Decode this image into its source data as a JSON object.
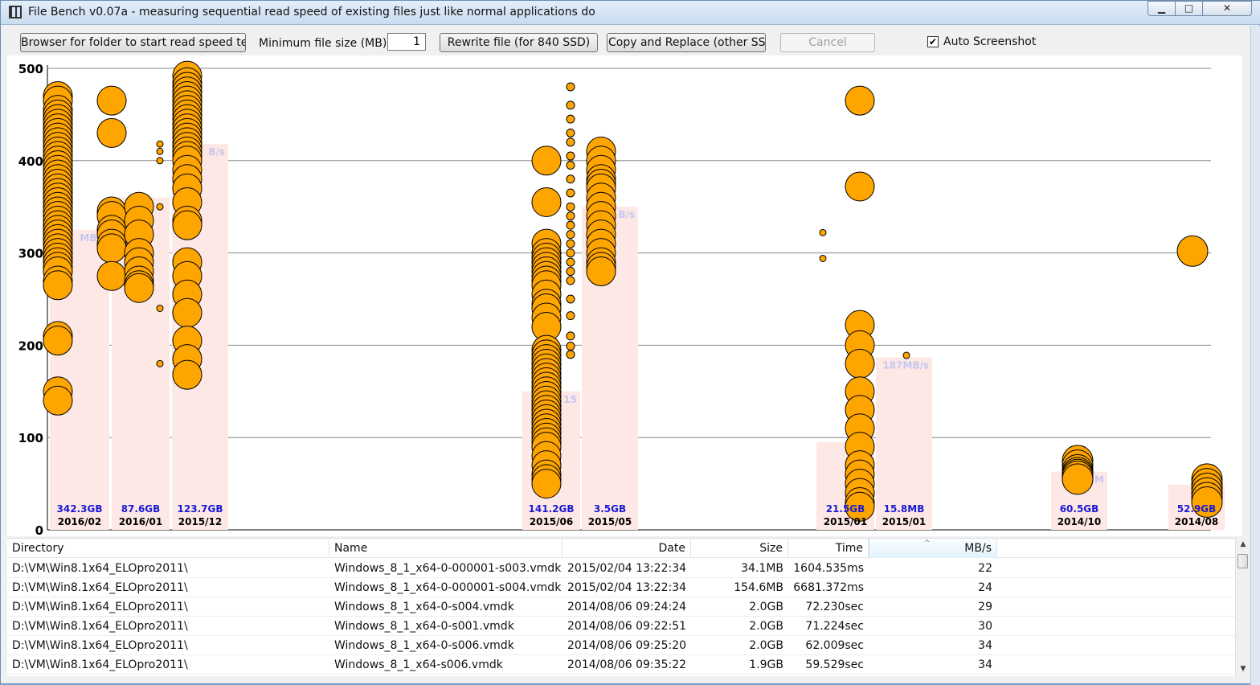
{
  "window": {
    "title": "File Bench v0.07a - measuring sequential read speed of existing files just like normal applications do",
    "minimize_glyph": "▁",
    "maximize_glyph": "□",
    "close_glyph": "✕"
  },
  "toolbar": {
    "browse_label": "Browser for folder to start read speed test.",
    "min_size_label": "Minimum file size (MB):",
    "min_size_value": "1",
    "rewrite_label": "Rewrite file (for 840 SSD)",
    "copy_replace_label": "Copy and Replace (other SSD)",
    "cancel_label": "Cancel",
    "auto_screenshot_label": "Auto Screenshot",
    "auto_screenshot_checked": true
  },
  "chart_data": {
    "type": "scatter",
    "ylim": [
      0,
      500
    ],
    "y_ticks": [
      "0",
      "100",
      "200",
      "300",
      "400",
      "500"
    ],
    "colors": {
      "bubble": "#ffa500",
      "band": "#fde8e6",
      "avg_text": "#c6c6ef",
      "size_text": "#1a1ad6",
      "grid": "#888888"
    },
    "groups": [
      {
        "date": "2016/02",
        "total": "342.3GB",
        "avg": 325,
        "avg_label": "MB/s",
        "speeds": [
          470,
          465,
          455,
          450,
          445,
          440,
          435,
          430,
          425,
          420,
          415,
          410,
          405,
          400,
          395,
          390,
          385,
          380,
          375,
          370,
          365,
          360,
          355,
          350,
          345,
          340,
          335,
          330,
          325,
          320,
          315,
          310,
          305,
          300,
          295,
          290,
          285,
          280,
          270,
          265,
          210,
          205,
          150,
          140
        ]
      },
      {
        "date": "2016/01",
        "total": "87.6GB",
        "avg": 360,
        "avg_label": "",
        "speeds": [
          465,
          430,
          345,
          340,
          325,
          320,
          310,
          305,
          275,
          350,
          335,
          320,
          300,
          290,
          280,
          270,
          265,
          262,
          350,
          418,
          410,
          400,
          240,
          180
        ]
      },
      {
        "date": "2015/12",
        "total": "123.7GB",
        "avg": 418,
        "avg_label": "B/s",
        "speeds": [
          492,
          485,
          480,
          475,
          470,
          465,
          460,
          455,
          450,
          445,
          440,
          435,
          430,
          425,
          420,
          415,
          410,
          405,
          400,
          390,
          380,
          370,
          355,
          335,
          330,
          290,
          275,
          255,
          235,
          205,
          185,
          168
        ]
      },
      {
        "date": "2015/06",
        "total": "141.2GB",
        "avg": 150,
        "avg_label": "15",
        "speeds": [
          400,
          355,
          310,
          300,
          295,
          290,
          285,
          280,
          275,
          270,
          265,
          255,
          245,
          240,
          230,
          220,
          195,
          190,
          185,
          180,
          175,
          170,
          165,
          160,
          155,
          150,
          145,
          140,
          135,
          130,
          125,
          120,
          115,
          110,
          105,
          100,
          95,
          90,
          80,
          70,
          60,
          55,
          50,
          480,
          460,
          445,
          430,
          420,
          405,
          395,
          380,
          365,
          350,
          340,
          330,
          320,
          310,
          300,
          290,
          280,
          270,
          250,
          232,
          210,
          199,
          190
        ]
      },
      {
        "date": "2015/05",
        "total": "3.5GB",
        "avg": 350,
        "avg_label": "B/s",
        "speeds": [
          410,
          400,
          390,
          380,
          375,
          370,
          360,
          350,
          340,
          330,
          320,
          310,
          300,
          290,
          285,
          280
        ]
      },
      {
        "date": "2015/01",
        "total": "21.5GB",
        "avg": 95,
        "avg_label": "95M",
        "speeds": [
          372,
          322,
          294,
          465,
          222,
          200,
          180,
          150,
          130,
          110,
          90,
          70,
          60,
          50,
          40,
          30,
          25
        ]
      },
      {
        "date": "2015/01",
        "total": "15.8MB",
        "avg": 187,
        "avg_label": "187MB/s",
        "speeds": [
          189
        ]
      },
      {
        "date": "2014/10",
        "total": "60.5GB",
        "avg": 63,
        "avg_label": "63M",
        "speeds": [
          75,
          70,
          65,
          62,
          60,
          58,
          55
        ]
      },
      {
        "date": "2014/08",
        "total": "52.9GB",
        "avg": 49,
        "avg_label": "49",
        "speeds": [
          302,
          55,
          50,
          45,
          40,
          35,
          30
        ]
      }
    ]
  },
  "table": {
    "columns": [
      "Directory",
      "Name",
      "Date",
      "Size",
      "Time",
      "MB/s"
    ],
    "sort_glyph": "^",
    "rows": [
      [
        "D:\\VM\\Win8.1x64_ELOpro2011\\",
        "Windows_8_1_x64-0-000001-s003.vmdk",
        "2015/02/04 13:22:34",
        "34.1MB",
        "1604.535ms",
        "22"
      ],
      [
        "D:\\VM\\Win8.1x64_ELOpro2011\\",
        "Windows_8_1_x64-0-000001-s004.vmdk",
        "2015/02/04 13:22:34",
        "154.6MB",
        "6681.372ms",
        "24"
      ],
      [
        "D:\\VM\\Win8.1x64_ELOpro2011\\",
        "Windows_8_1_x64-0-s004.vmdk",
        "2014/08/06 09:24:24",
        "2.0GB",
        "72.230sec",
        "29"
      ],
      [
        "D:\\VM\\Win8.1x64_ELOpro2011\\",
        "Windows_8_1_x64-0-s001.vmdk",
        "2014/08/06 09:22:51",
        "2.0GB",
        "71.224sec",
        "30"
      ],
      [
        "D:\\VM\\Win8.1x64_ELOpro2011\\",
        "Windows_8_1_x64-0-s006.vmdk",
        "2014/08/06 09:25:20",
        "2.0GB",
        "62.009sec",
        "34"
      ],
      [
        "D:\\VM\\Win8.1x64_ELOpro2011\\",
        "Windows_8_1_x64-s006.vmdk",
        "2014/08/06 09:35:22",
        "1.9GB",
        "59.529sec",
        "34"
      ]
    ]
  },
  "scrollbar": {
    "up_glyph": "▲",
    "down_glyph": "▼"
  }
}
